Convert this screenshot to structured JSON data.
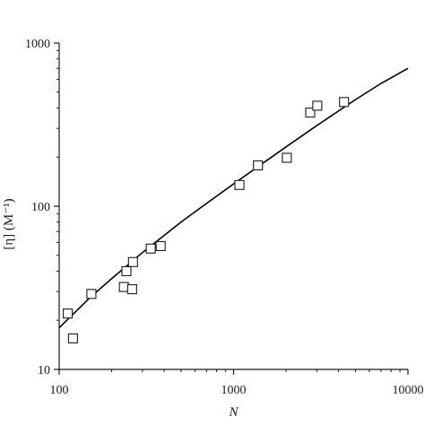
{
  "chart_data": {
    "type": "scatter",
    "title": "",
    "xlabel": "N",
    "ylabel": "[η] (M⁻¹)",
    "xscale": "log",
    "yscale": "log",
    "xlim": [
      100,
      10000
    ],
    "ylim": [
      10,
      1000
    ],
    "xticks": [
      100,
      1000,
      10000
    ],
    "xtick_labels": [
      "100",
      "1000",
      "10000"
    ],
    "yticks": [
      10,
      100,
      1000
    ],
    "ytick_labels": [
      "10",
      "100",
      "1000"
    ],
    "grid": false,
    "legend": "none",
    "series": [
      {
        "marker": "open-square",
        "x": [
          112,
          120,
          153,
          235,
          243,
          262,
          265,
          335,
          382,
          1080,
          1380,
          2020,
          2750,
          3020,
          4300
        ],
        "y": [
          22,
          15.5,
          29,
          32,
          40,
          31,
          45.5,
          55,
          57,
          135,
          178,
          198,
          375,
          413,
          435
        ]
      }
    ],
    "fit_line": {
      "style": "solid",
      "x": [
        100,
        150,
        200,
        300,
        500,
        700,
        1000,
        1500,
        2000,
        3000,
        5000,
        7000,
        10000
      ],
      "y": [
        18,
        27.5,
        36,
        52,
        80,
        104,
        137,
        186,
        231,
        312,
        450,
        565,
        700
      ]
    }
  }
}
